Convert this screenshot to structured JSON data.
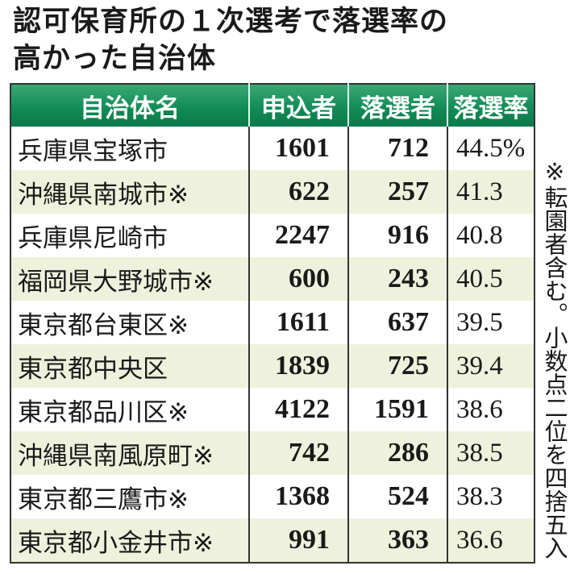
{
  "title_lines": [
    "認可保育所の１次選考で落選率の",
    "高かった自治体"
  ],
  "accent_color": "#0f8a55",
  "alt_row_color": "#eef2dc",
  "chart_data": {
    "type": "table",
    "columns": [
      "自治体名",
      "申込者",
      "落選者",
      "落選率"
    ],
    "rows": [
      {
        "name": "兵庫県宝塚市",
        "applicants": "1601",
        "rejected": "712",
        "rate": "44.5%"
      },
      {
        "name": "沖縄県南城市※",
        "applicants": "622",
        "rejected": "257",
        "rate": "41.3"
      },
      {
        "name": "兵庫県尼崎市",
        "applicants": "2247",
        "rejected": "916",
        "rate": "40.8"
      },
      {
        "name": "福岡県大野城市※",
        "applicants": "600",
        "rejected": "243",
        "rate": "40.5"
      },
      {
        "name": "東京都台東区※",
        "applicants": "1611",
        "rejected": "637",
        "rate": "39.5"
      },
      {
        "name": "東京都中央区",
        "applicants": "1839",
        "rejected": "725",
        "rate": "39.4"
      },
      {
        "name": "東京都品川区※",
        "applicants": "4122",
        "rejected": "1591",
        "rate": "38.6"
      },
      {
        "name": "沖縄県南風原町※",
        "applicants": "742",
        "rejected": "286",
        "rate": "38.5"
      },
      {
        "name": "東京都三鷹市※",
        "applicants": "1368",
        "rejected": "524",
        "rate": "38.3"
      },
      {
        "name": "東京都小金井市※",
        "applicants": "991",
        "rejected": "363",
        "rate": "36.6"
      }
    ]
  },
  "footnote": "※転園者含む。小数点二位を四捨五入"
}
